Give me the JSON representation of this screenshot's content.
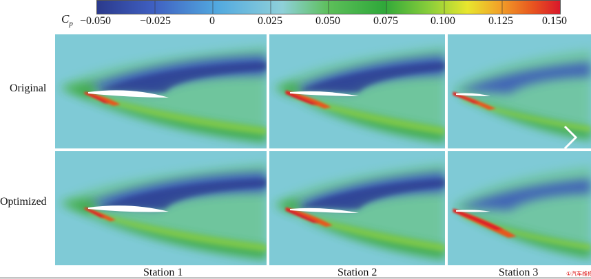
{
  "colorbar": {
    "variable_symbol": "C",
    "variable_subscript": "p",
    "ticks": [
      "−0.050",
      "−0.025",
      "0",
      "0.025",
      "0.050",
      "0.075",
      "0.100",
      "0.125",
      "0.150"
    ],
    "colors": [
      "#2b3a8c",
      "#3f5fc1",
      "#52a9df",
      "#8fd0d9",
      "#5dbf5a",
      "#2fa83a",
      "#8ccf3a",
      "#e8e62e",
      "#f2a128",
      "#e8561f",
      "#d9182b"
    ]
  },
  "rows": [
    {
      "label": "Original"
    },
    {
      "label": "Optimized"
    }
  ],
  "columns": [
    {
      "label": "Station 1"
    },
    {
      "label": "Station 2"
    },
    {
      "label": "Station 3"
    }
  ],
  "navigation": {
    "icon": "chevron-right-icon"
  },
  "logo": {
    "text": "①汽车维修"
  }
}
